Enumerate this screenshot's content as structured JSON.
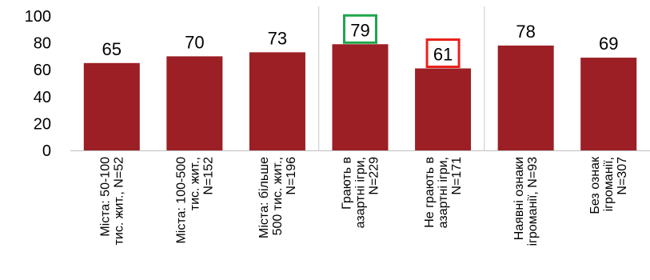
{
  "chart_data": {
    "type": "bar",
    "ylim": [
      0,
      100
    ],
    "yticks": [
      0,
      20,
      40,
      60,
      80,
      100
    ],
    "grid": false,
    "legend": "none",
    "categories": [
      [
        "Міста: 50-100",
        "тис. жит., N=52"
      ],
      [
        "Міста: 100-500",
        "тис. жит.,",
        "N=152"
      ],
      [
        "Міста: більше",
        "500 тис. жит.,",
        "N=196"
      ],
      [
        "Грають в",
        "азартні ігри,",
        "N=229"
      ],
      [
        "Не грають в",
        "азартні ігри,",
        "N=171"
      ],
      [
        "Наявні ознаки",
        "ігроманії, N=93"
      ],
      [
        "Без ознак",
        "ігроманії,",
        "N=307"
      ]
    ],
    "values": [
      65,
      70,
      73,
      79,
      61,
      78,
      69
    ],
    "data_labels": [
      "65",
      "70",
      "73",
      "79",
      "61",
      "78",
      "69"
    ],
    "highlights": [
      {
        "index": 3,
        "color": "#1fa64a"
      },
      {
        "index": 4,
        "color": "#e8221b"
      }
    ],
    "group_separators_after": [
      2,
      4
    ],
    "colors": {
      "bar": "#9b1f24",
      "separator": "#c8c8c8",
      "axis": "#bfbfbf"
    }
  }
}
